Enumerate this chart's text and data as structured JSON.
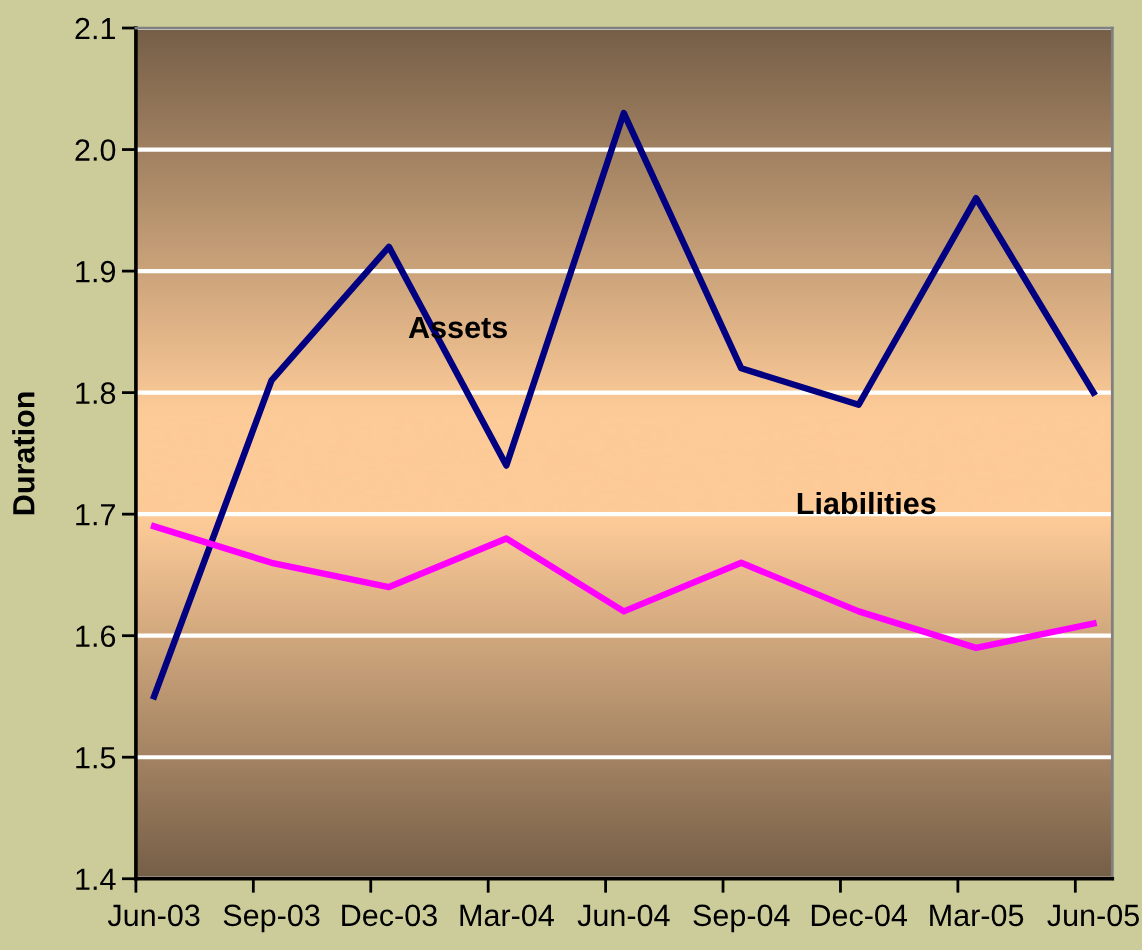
{
  "chart_data": {
    "type": "line",
    "ylabel": "Duration",
    "categories": [
      "Jun-03",
      "Sep-03",
      "Dec-03",
      "Mar-04",
      "Jun-04",
      "Sep-04",
      "Dec-04",
      "Mar-05",
      "Jun-05"
    ],
    "series": [
      {
        "name": "Assets",
        "color": "#000080",
        "values": [
          1.55,
          1.81,
          1.92,
          1.74,
          2.03,
          1.82,
          1.79,
          1.96,
          1.8
        ]
      },
      {
        "name": "Liabilities",
        "color": "#ff00ff",
        "values": [
          1.69,
          1.66,
          1.64,
          1.68,
          1.62,
          1.66,
          1.62,
          1.59,
          1.61
        ]
      }
    ],
    "ylim": [
      1.4,
      2.1
    ],
    "yticks": [
      1.4,
      1.5,
      1.6,
      1.7,
      1.8,
      1.9,
      {
        "value": 2,
        "label": "2.0"
      },
      2.1
    ],
    "grid": "y",
    "marker": "none",
    "line_style": "solid"
  }
}
